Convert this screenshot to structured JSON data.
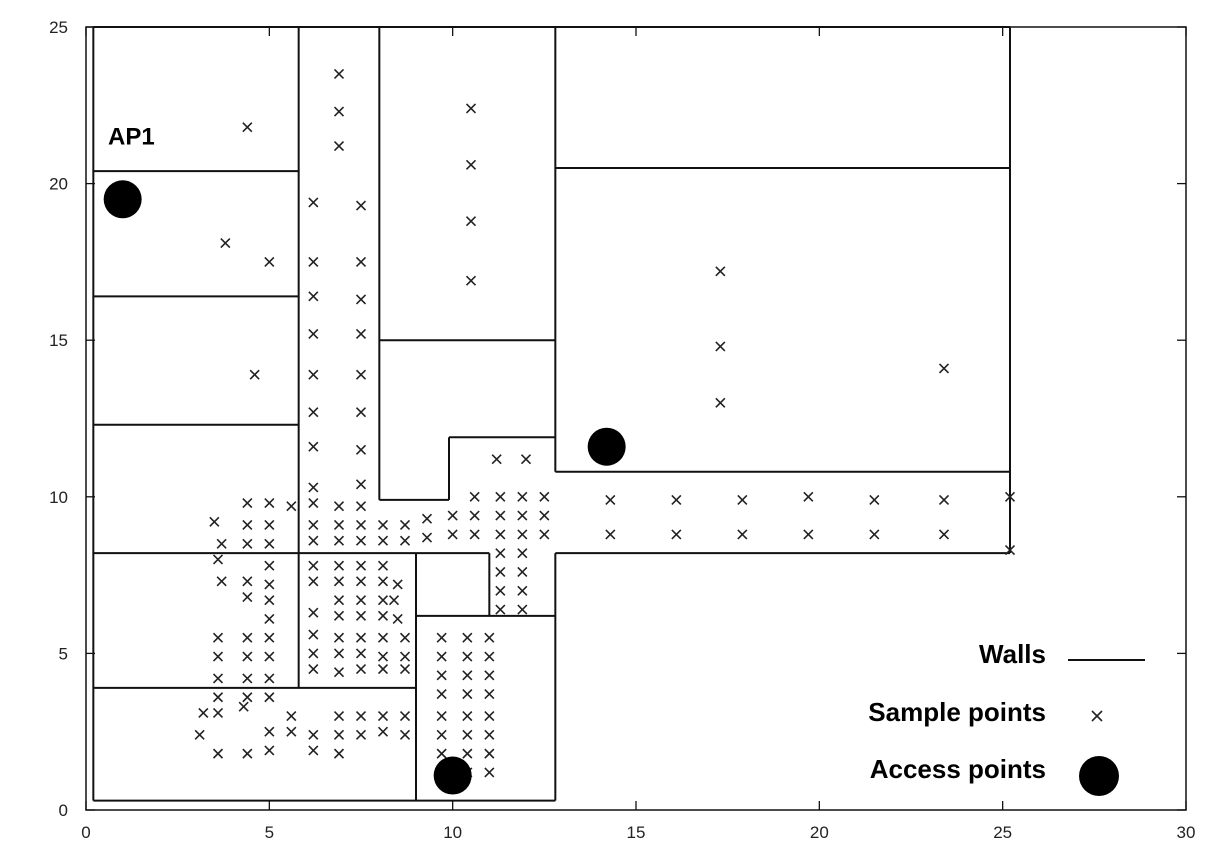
{
  "chart_data": {
    "type": "scatter",
    "title": "",
    "xlabel": "",
    "ylabel": "",
    "xlim": [
      0,
      30
    ],
    "ylim": [
      0,
      25
    ],
    "x_ticks": [
      "0",
      "5",
      "10",
      "15",
      "20",
      "25",
      "30"
    ],
    "y_ticks": [
      "0",
      "5",
      "10",
      "15",
      "20",
      "25"
    ],
    "grid": false,
    "legend_position": "bottom-right",
    "legend": [
      "Walls",
      "Sample points",
      "Access points"
    ],
    "annotations": [
      {
        "text": "AP1",
        "x": 0.6,
        "y": 21.5
      }
    ],
    "access_points": [
      [
        1.0,
        19.5
      ],
      [
        14.2,
        11.6
      ],
      [
        10.0,
        1.1
      ]
    ],
    "walls": [
      [
        [
          0.2,
          25
        ],
        [
          25.2,
          25
        ]
      ],
      [
        [
          0.2,
          25
        ],
        [
          0.2,
          0.3
        ]
      ],
      [
        [
          0.2,
          0.3
        ],
        [
          12.8,
          0.3
        ]
      ],
      [
        [
          25.2,
          25
        ],
        [
          25.2,
          8.2
        ]
      ],
      [
        [
          5.8,
          25
        ],
        [
          5.8,
          3.9
        ]
      ],
      [
        [
          8.0,
          25
        ],
        [
          8.0,
          9.9
        ]
      ],
      [
        [
          12.8,
          25
        ],
        [
          12.8,
          10.8
        ]
      ],
      [
        [
          0.2,
          20.4
        ],
        [
          5.8,
          20.4
        ]
      ],
      [
        [
          0.2,
          16.4
        ],
        [
          5.8,
          16.4
        ]
      ],
      [
        [
          0.2,
          12.3
        ],
        [
          5.8,
          12.3
        ]
      ],
      [
        [
          0.2,
          8.2
        ],
        [
          11.0,
          8.2
        ]
      ],
      [
        [
          0.2,
          3.9
        ],
        [
          9.0,
          3.9
        ]
      ],
      [
        [
          8.0,
          15.0
        ],
        [
          12.8,
          15.0
        ]
      ],
      [
        [
          8.0,
          9.9
        ],
        [
          9.9,
          9.9
        ]
      ],
      [
        [
          9.9,
          9.9
        ],
        [
          9.9,
          11.9
        ]
      ],
      [
        [
          9.9,
          11.9
        ],
        [
          12.8,
          11.9
        ]
      ],
      [
        [
          12.8,
          20.5
        ],
        [
          25.2,
          20.5
        ]
      ],
      [
        [
          12.8,
          10.8
        ],
        [
          25.2,
          10.8
        ]
      ],
      [
        [
          12.8,
          8.2
        ],
        [
          25.2,
          8.2
        ]
      ],
      [
        [
          12.8,
          8.2
        ],
        [
          12.8,
          0.3
        ]
      ],
      [
        [
          9.0,
          8.2
        ],
        [
          9.0,
          0.3
        ]
      ],
      [
        [
          11.0,
          8.2
        ],
        [
          11.0,
          6.2
        ]
      ],
      [
        [
          9.0,
          6.2
        ],
        [
          12.8,
          6.2
        ]
      ]
    ],
    "series": [
      {
        "name": "Sample points",
        "points": [
          [
            4.4,
            21.8
          ],
          [
            3.8,
            18.1
          ],
          [
            5.0,
            17.5
          ],
          [
            4.6,
            13.9
          ],
          [
            6.9,
            23.5
          ],
          [
            6.9,
            22.3
          ],
          [
            6.9,
            21.2
          ],
          [
            6.2,
            19.4
          ],
          [
            7.5,
            19.3
          ],
          [
            6.2,
            17.5
          ],
          [
            7.5,
            17.5
          ],
          [
            6.2,
            16.4
          ],
          [
            7.5,
            16.3
          ],
          [
            6.2,
            15.2
          ],
          [
            7.5,
            15.2
          ],
          [
            6.2,
            13.9
          ],
          [
            7.5,
            13.9
          ],
          [
            6.2,
            12.7
          ],
          [
            7.5,
            12.7
          ],
          [
            6.2,
            11.6
          ],
          [
            7.5,
            11.5
          ],
          [
            6.2,
            10.3
          ],
          [
            7.5,
            10.4
          ],
          [
            10.5,
            22.4
          ],
          [
            10.5,
            20.6
          ],
          [
            10.5,
            18.8
          ],
          [
            10.5,
            16.9
          ],
          [
            17.3,
            17.2
          ],
          [
            17.3,
            14.8
          ],
          [
            17.3,
            13.0
          ],
          [
            23.4,
            14.1
          ],
          [
            11.2,
            11.2
          ],
          [
            12.0,
            11.2
          ],
          [
            14.3,
            9.9
          ],
          [
            16.1,
            9.9
          ],
          [
            17.9,
            9.9
          ],
          [
            19.7,
            10.0
          ],
          [
            21.5,
            9.9
          ],
          [
            23.4,
            9.9
          ],
          [
            25.2,
            10.0
          ],
          [
            14.3,
            8.8
          ],
          [
            16.1,
            8.8
          ],
          [
            17.9,
            8.8
          ],
          [
            19.7,
            8.8
          ],
          [
            21.5,
            8.8
          ],
          [
            23.4,
            8.8
          ],
          [
            25.2,
            8.3
          ],
          [
            3.5,
            9.2
          ],
          [
            4.4,
            9.8
          ],
          [
            5.0,
            9.8
          ],
          [
            5.6,
            9.7
          ],
          [
            3.7,
            8.5
          ],
          [
            4.4,
            9.1
          ],
          [
            5.0,
            9.1
          ],
          [
            4.4,
            8.5
          ],
          [
            5.0,
            8.5
          ],
          [
            3.6,
            8.0
          ],
          [
            5.0,
            7.8
          ],
          [
            3.7,
            7.3
          ],
          [
            4.4,
            7.3
          ],
          [
            5.0,
            7.2
          ],
          [
            4.4,
            6.8
          ],
          [
            5.0,
            6.7
          ],
          [
            5.0,
            6.1
          ],
          [
            3.6,
            5.5
          ],
          [
            4.4,
            5.5
          ],
          [
            5.0,
            5.5
          ],
          [
            3.6,
            4.9
          ],
          [
            4.4,
            4.9
          ],
          [
            5.0,
            4.9
          ],
          [
            3.6,
            4.2
          ],
          [
            4.4,
            4.2
          ],
          [
            5.0,
            4.2
          ],
          [
            3.6,
            3.6
          ],
          [
            4.4,
            3.6
          ],
          [
            5.0,
            3.6
          ],
          [
            3.2,
            3.1
          ],
          [
            3.6,
            3.1
          ],
          [
            4.3,
            3.3
          ],
          [
            3.1,
            2.4
          ],
          [
            5.0,
            2.5
          ],
          [
            5.6,
            2.5
          ],
          [
            5.6,
            3.0
          ],
          [
            3.6,
            1.8
          ],
          [
            4.4,
            1.8
          ],
          [
            5.0,
            1.9
          ],
          [
            6.2,
            2.4
          ],
          [
            6.2,
            1.9
          ],
          [
            6.9,
            2.4
          ],
          [
            6.9,
            1.8
          ],
          [
            7.5,
            2.4
          ],
          [
            7.5,
            3.0
          ],
          [
            6.9,
            3.0
          ],
          [
            8.1,
            2.5
          ],
          [
            8.1,
            3.0
          ],
          [
            8.7,
            2.4
          ],
          [
            8.7,
            3.0
          ],
          [
            6.2,
            9.8
          ],
          [
            6.9,
            9.7
          ],
          [
            7.5,
            9.7
          ],
          [
            6.2,
            9.1
          ],
          [
            6.9,
            9.1
          ],
          [
            7.5,
            9.1
          ],
          [
            8.1,
            9.1
          ],
          [
            8.7,
            9.1
          ],
          [
            6.2,
            8.6
          ],
          [
            6.9,
            8.6
          ],
          [
            7.5,
            8.6
          ],
          [
            8.1,
            8.6
          ],
          [
            8.7,
            8.6
          ],
          [
            6.2,
            7.8
          ],
          [
            6.9,
            7.8
          ],
          [
            7.5,
            7.8
          ],
          [
            8.1,
            7.8
          ],
          [
            6.2,
            7.3
          ],
          [
            6.9,
            7.3
          ],
          [
            7.5,
            7.3
          ],
          [
            8.1,
            7.3
          ],
          [
            8.5,
            7.2
          ],
          [
            6.9,
            6.7
          ],
          [
            7.5,
            6.7
          ],
          [
            8.1,
            6.7
          ],
          [
            8.4,
            6.7
          ],
          [
            6.2,
            6.3
          ],
          [
            6.9,
            6.2
          ],
          [
            7.5,
            6.2
          ],
          [
            8.1,
            6.2
          ],
          [
            8.5,
            6.1
          ],
          [
            6.2,
            5.6
          ],
          [
            6.9,
            5.5
          ],
          [
            7.5,
            5.5
          ],
          [
            8.1,
            5.5
          ],
          [
            8.7,
            5.5
          ],
          [
            6.2,
            5.0
          ],
          [
            6.9,
            5.0
          ],
          [
            7.5,
            5.0
          ],
          [
            8.1,
            4.9
          ],
          [
            8.7,
            4.9
          ],
          [
            6.2,
            4.5
          ],
          [
            6.9,
            4.4
          ],
          [
            7.5,
            4.5
          ],
          [
            8.1,
            4.5
          ],
          [
            8.7,
            4.5
          ],
          [
            9.3,
            9.3
          ],
          [
            9.3,
            8.7
          ],
          [
            10.0,
            9.4
          ],
          [
            10.0,
            8.8
          ],
          [
            10.6,
            9.4
          ],
          [
            10.6,
            8.8
          ],
          [
            11.3,
            10.0
          ],
          [
            11.3,
            9.4
          ],
          [
            11.3,
            8.8
          ],
          [
            11.9,
            10.0
          ],
          [
            11.9,
            9.4
          ],
          [
            11.9,
            8.8
          ],
          [
            12.5,
            10.0
          ],
          [
            12.5,
            9.4
          ],
          [
            12.5,
            8.8
          ],
          [
            10.6,
            10.0
          ],
          [
            11.3,
            8.2
          ],
          [
            11.9,
            8.2
          ],
          [
            11.3,
            7.6
          ],
          [
            11.9,
            7.6
          ],
          [
            11.3,
            7.0
          ],
          [
            11.9,
            7.0
          ],
          [
            11.3,
            6.4
          ],
          [
            11.9,
            6.4
          ],
          [
            9.7,
            5.5
          ],
          [
            10.4,
            5.5
          ],
          [
            11.0,
            5.5
          ],
          [
            9.7,
            4.9
          ],
          [
            10.4,
            4.9
          ],
          [
            11.0,
            4.9
          ],
          [
            9.7,
            4.3
          ],
          [
            10.4,
            4.3
          ],
          [
            11.0,
            4.3
          ],
          [
            9.7,
            3.7
          ],
          [
            10.4,
            3.7
          ],
          [
            11.0,
            3.7
          ],
          [
            9.7,
            3.0
          ],
          [
            10.4,
            3.0
          ],
          [
            11.0,
            3.0
          ],
          [
            9.7,
            2.4
          ],
          [
            10.4,
            2.4
          ],
          [
            11.0,
            2.4
          ],
          [
            9.7,
            1.8
          ],
          [
            10.4,
            1.8
          ],
          [
            11.0,
            1.8
          ],
          [
            10.4,
            1.2
          ],
          [
            11.0,
            1.2
          ]
        ]
      }
    ]
  },
  "colors": {
    "line": "#111111",
    "marker": "#222222",
    "ap": "#000000",
    "background": "#ffffff"
  }
}
